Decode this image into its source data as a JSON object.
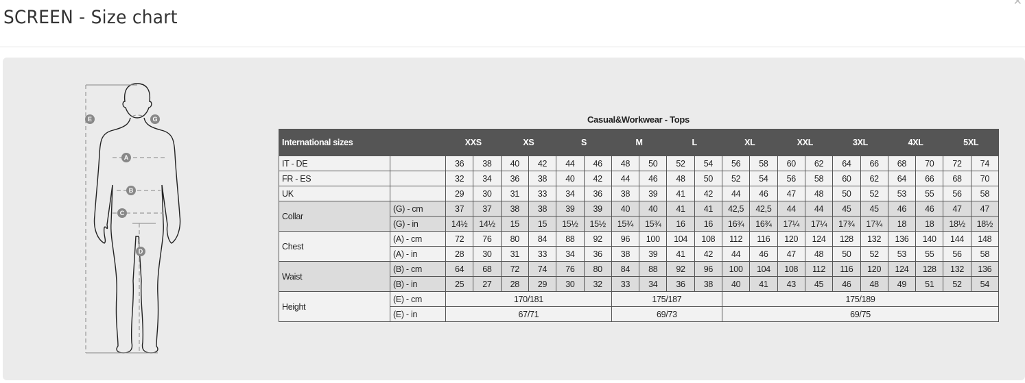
{
  "modal": {
    "title": "SCREEN - Size chart",
    "close_icon": "close-icon"
  },
  "figure": {
    "labels": [
      "E",
      "G",
      "A",
      "B",
      "C",
      "D"
    ]
  },
  "size_table": {
    "caption": "Casual&Workwear - Tops",
    "header_label": "International sizes",
    "sizes": [
      "XXS",
      "XS",
      "S",
      "M",
      "L",
      "XL",
      "XXL",
      "3XL",
      "4XL",
      "5XL"
    ],
    "rows": [
      {
        "label": "IT - DE",
        "unit": "",
        "values": [
          "36",
          "38",
          "40",
          "42",
          "44",
          "46",
          "48",
          "50",
          "52",
          "54",
          "56",
          "58",
          "60",
          "62",
          "64",
          "66",
          "68",
          "70",
          "72",
          "74"
        ]
      },
      {
        "label": "FR - ES",
        "unit": "",
        "values": [
          "32",
          "34",
          "36",
          "38",
          "40",
          "42",
          "44",
          "46",
          "48",
          "50",
          "52",
          "54",
          "56",
          "58",
          "60",
          "62",
          "64",
          "66",
          "68",
          "70"
        ]
      },
      {
        "label": "UK",
        "unit": "",
        "values": [
          "29",
          "30",
          "31",
          "33",
          "34",
          "36",
          "38",
          "39",
          "41",
          "42",
          "44",
          "46",
          "47",
          "48",
          "50",
          "52",
          "53",
          "55",
          "56",
          "58"
        ]
      }
    ],
    "groups": [
      {
        "label": "Collar",
        "shaded": true,
        "rows": [
          {
            "unit": "(G) - cm",
            "values": [
              "37",
              "37",
              "38",
              "38",
              "39",
              "39",
              "40",
              "40",
              "41",
              "41",
              "42,5",
              "42,5",
              "44",
              "44",
              "45",
              "45",
              "46",
              "46",
              "47",
              "47"
            ]
          },
          {
            "unit": "(G)  - in",
            "values": [
              "14½",
              "14½",
              "15",
              "15",
              "15½",
              "15½",
              "15¾",
              "15¾",
              "16",
              "16",
              "16¾",
              "16¾",
              "17¼",
              "17¼",
              "17¾",
              "17¾",
              "18",
              "18",
              "18½",
              "18½"
            ]
          }
        ]
      },
      {
        "label": "Chest",
        "shaded": false,
        "rows": [
          {
            "unit": "(A) - cm",
            "values": [
              "72",
              "76",
              "80",
              "84",
              "88",
              "92",
              "96",
              "100",
              "104",
              "108",
              "112",
              "116",
              "120",
              "124",
              "128",
              "132",
              "136",
              "140",
              "144",
              "148"
            ]
          },
          {
            "unit": "(A) - in",
            "values": [
              "28",
              "30",
              "31",
              "33",
              "34",
              "36",
              "38",
              "39",
              "41",
              "42",
              "44",
              "46",
              "47",
              "48",
              "50",
              "52",
              "53",
              "55",
              "56",
              "58"
            ]
          }
        ]
      },
      {
        "label": "Waist",
        "shaded": true,
        "rows": [
          {
            "unit": "(B) - cm",
            "values": [
              "64",
              "68",
              "72",
              "74",
              "76",
              "80",
              "84",
              "88",
              "92",
              "96",
              "100",
              "104",
              "108",
              "112",
              "116",
              "120",
              "124",
              "128",
              "132",
              "136"
            ]
          },
          {
            "unit": "(B) - in",
            "values": [
              "25",
              "27",
              "28",
              "29",
              "30",
              "32",
              "33",
              "34",
              "36",
              "38",
              "40",
              "41",
              "43",
              "45",
              "46",
              "48",
              "49",
              "51",
              "52",
              "54"
            ]
          }
        ]
      }
    ],
    "height": {
      "label": "Height",
      "rows": [
        {
          "unit": "(E) - cm",
          "spans": [
            {
              "value": "170/181",
              "cols": 6
            },
            {
              "value": "175/187",
              "cols": 4
            },
            {
              "value": "175/189",
              "cols": 10
            }
          ]
        },
        {
          "unit": "(E) - in",
          "spans": [
            {
              "value": "67/71",
              "cols": 6
            },
            {
              "value": "69/73",
              "cols": 4
            },
            {
              "value": "69/75",
              "cols": 10
            }
          ]
        }
      ]
    }
  }
}
